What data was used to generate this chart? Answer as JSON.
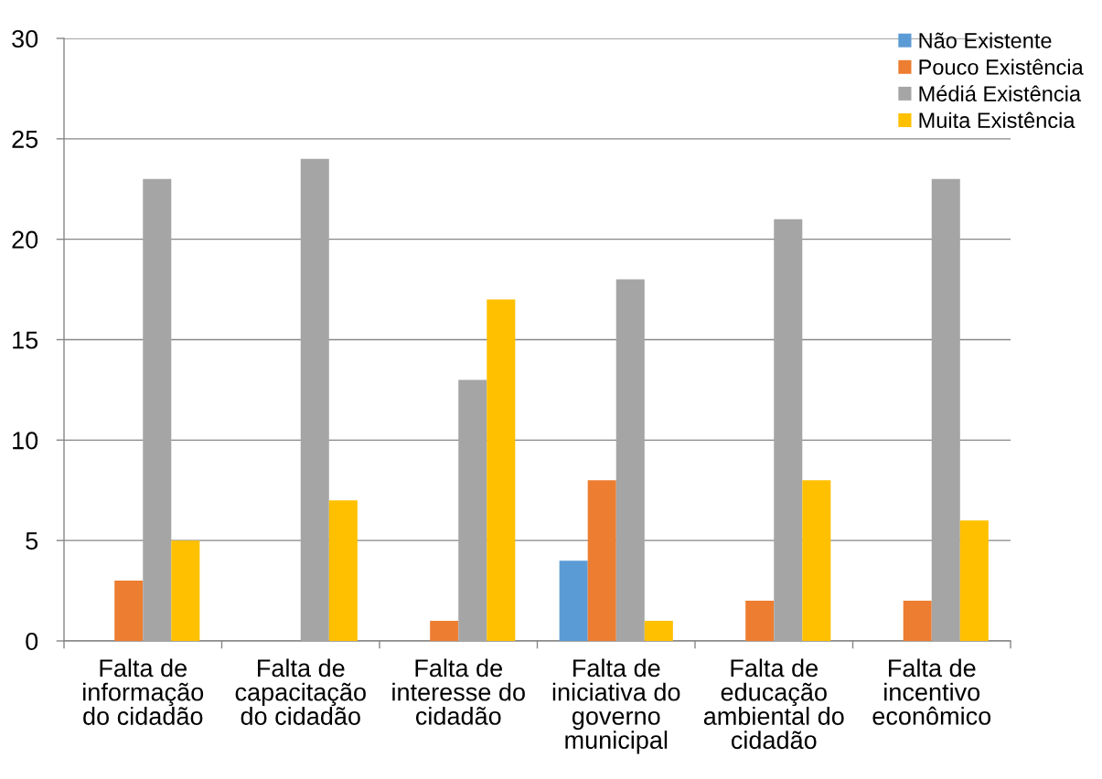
{
  "chart_data": {
    "type": "bar",
    "categories": [
      "Falta de\ninformação\ndo cidadão",
      "Falta de\ncapacitação\ndo cidadão",
      "Falta de\ninteresse do\ncidadão",
      "Falta de\niniciativa do\ngoverno\nmunicipal",
      "Falta de\neducação\nambiental do\ncidadão",
      "Falta de\nincentivo\neconômico"
    ],
    "series": [
      {
        "name": "Não Existente",
        "color": "#5b9bd5",
        "values": [
          0,
          0,
          0,
          4,
          0,
          0
        ]
      },
      {
        "name": "Pouco Existência",
        "color": "#ed7d31",
        "values": [
          3,
          0,
          1,
          8,
          2,
          2
        ]
      },
      {
        "name": "Médiá Existência",
        "color": "#a5a5a5",
        "values": [
          23,
          24,
          13,
          18,
          21,
          23
        ]
      },
      {
        "name": "Muita Existência",
        "color": "#ffc000",
        "values": [
          5,
          7,
          17,
          1,
          8,
          6
        ]
      }
    ],
    "ylim": [
      0,
      30
    ],
    "yticks": [
      0,
      5,
      10,
      15,
      20,
      25,
      30
    ],
    "grid": "y",
    "legend": "top right"
  }
}
